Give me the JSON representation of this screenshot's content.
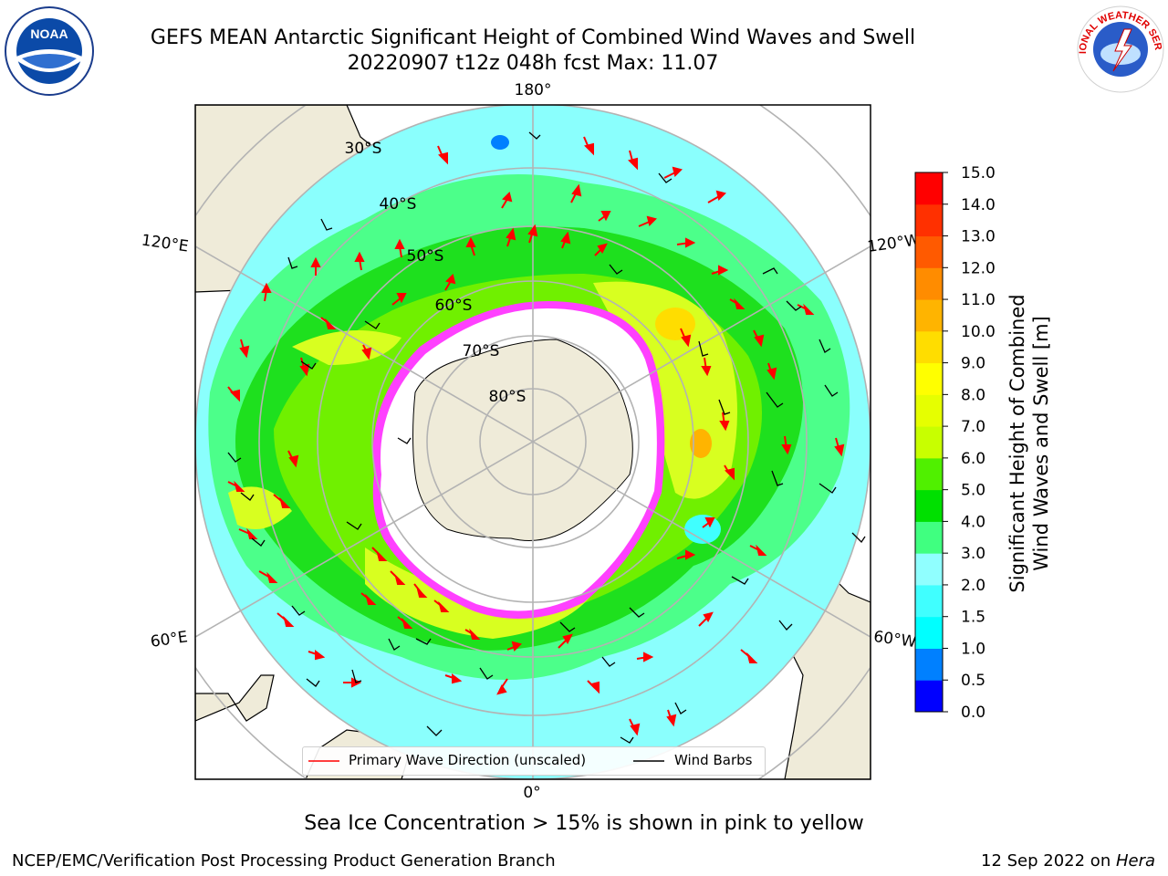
{
  "header": {
    "title_line1": "GEFS MEAN Antarctic Significant Height of Combined Wind Waves and Swell",
    "title_line2": "20220907 t12z 048h fcst   Max: 11.07",
    "left_logo_text": "NOAA",
    "left_logo_ring": "NATIONAL OCEANIC AND ATMOSPHERIC ADMINISTRATION · U.S. DEPARTMENT OF COMMERCE",
    "right_logo_ring": "NATIONAL WEATHER SERVICE"
  },
  "map": {
    "projection": "south-polar-stereographic",
    "meridian_labels": [
      "180°",
      "120°E",
      "120°W",
      "60°E",
      "60°W",
      "0°"
    ],
    "latitude_labels": [
      "30°S",
      "40°S",
      "50°S",
      "60°S",
      "70°S",
      "80°S"
    ],
    "legend": {
      "wave_direction": "Primary Wave Direction (unscaled)",
      "wind_barbs": "Wind Barbs"
    },
    "colors": {
      "land": "#efebd9",
      "ocean_low": "#8afffd",
      "sea_ice": "#ff40ff",
      "arrow": "#ff0000"
    }
  },
  "colorbar": {
    "label_line1": "Significant Height of Combined",
    "label_line2": "Wind Waves and Swell [m]",
    "ticks": [
      "0.0",
      "0.5",
      "1.0",
      "1.5",
      "2.0",
      "3.0",
      "4.0",
      "5.0",
      "6.0",
      "7.0",
      "8.0",
      "9.0",
      "10.0",
      "11.0",
      "12.0",
      "13.0",
      "14.0",
      "15.0"
    ],
    "colors": [
      "#0000ff",
      "#0080ff",
      "#00ffff",
      "#40ffff",
      "#90ffff",
      "#40ff80",
      "#00e000",
      "#50f000",
      "#c8ff00",
      "#e6ff00",
      "#ffff00",
      "#ffdd00",
      "#ffb400",
      "#ff8c00",
      "#ff5a00",
      "#ff3000",
      "#ff0000"
    ]
  },
  "footer": {
    "sea_ice_note": "Sea Ice Concentration > 15% is shown in pink to yellow",
    "left": "NCEP/EMC/Verification Post Processing Product Generation Branch",
    "right_date": "12 Sep 2022 on ",
    "right_host": "Hera"
  }
}
